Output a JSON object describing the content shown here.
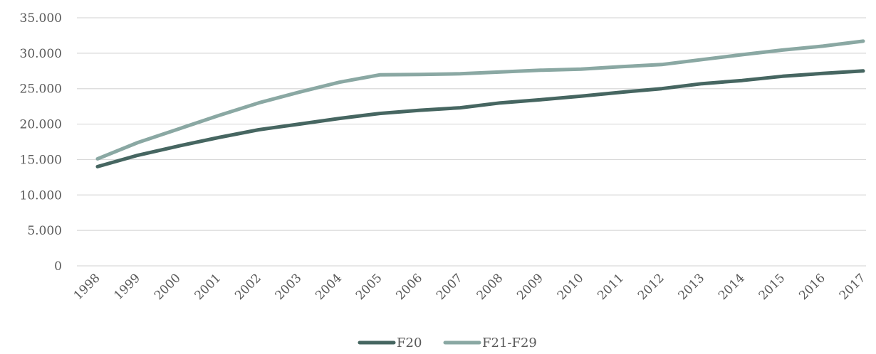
{
  "chart_data": {
    "type": "line",
    "title": "",
    "xlabel": "",
    "ylabel": "",
    "x": [
      "1998",
      "1999",
      "2000",
      "2001",
      "2002",
      "2003",
      "2004",
      "2005",
      "2006",
      "2007",
      "2008",
      "2009",
      "2010",
      "2011",
      "2012",
      "2013",
      "2014",
      "2015",
      "2016",
      "2017"
    ],
    "yticks": [
      "0",
      "5.000",
      "10.000",
      "15.000",
      "20.000",
      "25.000",
      "30.000",
      "35.000"
    ],
    "ylim": [
      0,
      35000
    ],
    "grid": true,
    "legend_position": "bottom",
    "series": [
      {
        "name": "F20",
        "color": "#466661",
        "values": [
          14000,
          15600,
          16900,
          18100,
          19200,
          20000,
          20800,
          21500,
          21950,
          22300,
          23000,
          23450,
          23950,
          24500,
          25000,
          25700,
          26150,
          26750,
          27150,
          27500
        ]
      },
      {
        "name": "F21-F29",
        "color": "#8aa8a3",
        "values": [
          15100,
          17400,
          19300,
          21200,
          23000,
          24500,
          25900,
          26950,
          27000,
          27100,
          27350,
          27600,
          27750,
          28100,
          28400,
          29100,
          29800,
          30450,
          31000,
          31700
        ]
      }
    ]
  }
}
